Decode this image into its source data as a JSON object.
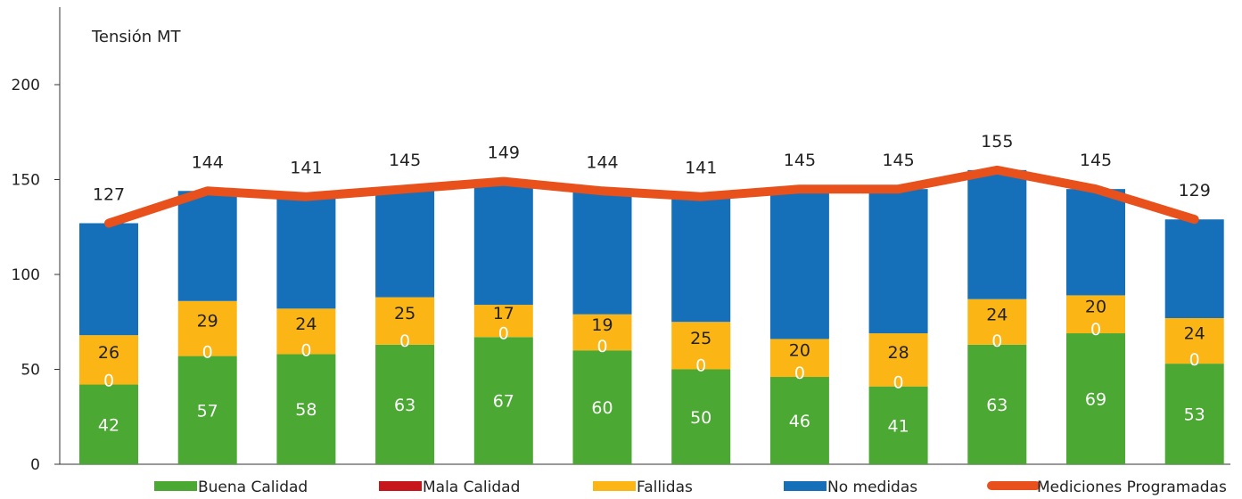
{
  "chart_data": {
    "type": "bar",
    "stacked": true,
    "title": "Tensión MT",
    "xlabel": "",
    "ylabel": "",
    "ylim": [
      0,
      240
    ],
    "yticks": [
      0,
      50,
      100,
      150,
      200
    ],
    "grid": false,
    "legend_position": "bottom",
    "n_groups": 12,
    "series": [
      {
        "name": "Buena Calidad",
        "color": "#4aa833",
        "values": [
          42,
          57,
          58,
          63,
          67,
          60,
          50,
          46,
          41,
          63,
          69,
          53
        ]
      },
      {
        "name": "Mala Calidad",
        "color": "#c8161d",
        "values": [
          0,
          0,
          0,
          0,
          0,
          0,
          0,
          0,
          0,
          0,
          0,
          0
        ]
      },
      {
        "name": "Fallidas",
        "color": "#fbb615",
        "values": [
          26,
          29,
          24,
          25,
          17,
          19,
          25,
          20,
          28,
          24,
          20,
          24
        ]
      },
      {
        "name": "No medidas",
        "color": "#1570b9",
        "values": [
          59,
          58,
          59,
          57,
          65,
          65,
          66,
          79,
          76,
          68,
          56,
          52
        ]
      }
    ],
    "line_series": {
      "name": "Mediciones Programadas",
      "color": "#e8501c",
      "values": [
        127,
        144,
        141,
        145,
        149,
        144,
        141,
        145,
        145,
        155,
        145,
        129
      ]
    }
  }
}
